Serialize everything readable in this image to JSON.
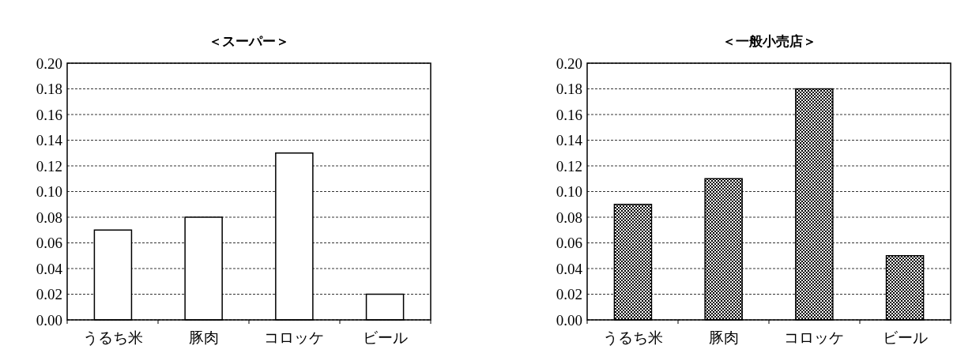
{
  "chart_data": [
    {
      "type": "bar",
      "title": "＜スーパー＞",
      "categories": [
        "うるち米",
        "豚肉",
        "コロッケ",
        "ビール"
      ],
      "values": [
        0.07,
        0.08,
        0.13,
        0.02
      ],
      "color": "#ffffff",
      "ylim": [
        0,
        0.2
      ],
      "yticks": [
        {
          "value": 0,
          "label": "0.00"
        },
        {
          "value": 0.02,
          "label": "0.02"
        },
        {
          "value": 0.04,
          "label": "0.04"
        },
        {
          "value": 0.06,
          "label": "0.06"
        },
        {
          "value": 0.08,
          "label": "0.08"
        },
        {
          "value": 0.1,
          "label": "0.10"
        },
        {
          "value": 0.12,
          "label": "0.12"
        },
        {
          "value": 0.14,
          "label": "0.14"
        },
        {
          "value": 0.16,
          "label": "0.16"
        },
        {
          "value": 0.18,
          "label": "0.18"
        },
        {
          "value": 0.2,
          "label": "0.20"
        }
      ],
      "grid": "y",
      "line_style": "dashed"
    },
    {
      "type": "bar",
      "title": "＜一般小売店＞",
      "categories": [
        "うるち米",
        "豚肉",
        "コロッケ",
        "ビール"
      ],
      "values": [
        0.09,
        0.11,
        0.18,
        0.05
      ],
      "color": "#000000",
      "ylim": [
        0,
        0.2
      ],
      "yticks": [
        {
          "value": 0,
          "label": "0.00"
        },
        {
          "value": 0.02,
          "label": "0.02"
        },
        {
          "value": 0.04,
          "label": "0.04"
        },
        {
          "value": 0.06,
          "label": "0.06"
        },
        {
          "value": 0.08,
          "label": "0.08"
        },
        {
          "value": 0.1,
          "label": "0.10"
        },
        {
          "value": 0.12,
          "label": "0.12"
        },
        {
          "value": 0.14,
          "label": "0.14"
        },
        {
          "value": 0.16,
          "label": "0.16"
        },
        {
          "value": 0.18,
          "label": "0.18"
        },
        {
          "value": 0.2,
          "label": "0.20"
        }
      ],
      "grid": "y",
      "line_style": "dashed"
    }
  ]
}
